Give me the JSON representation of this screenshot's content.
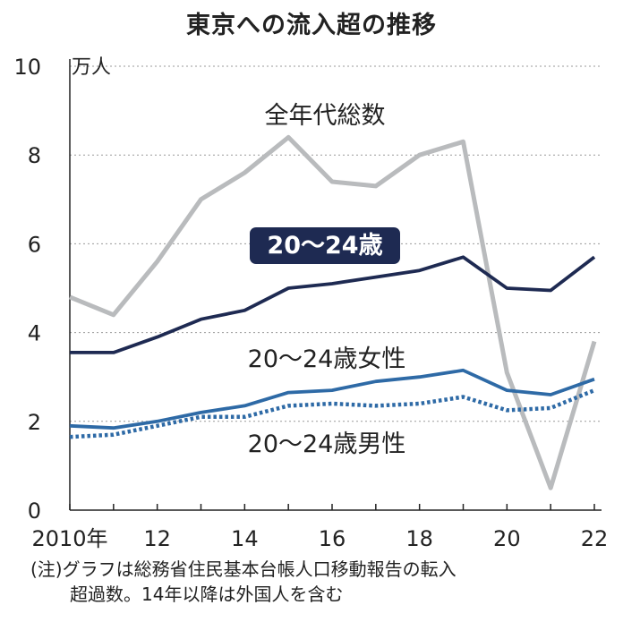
{
  "title": "東京への流入超の推移",
  "note": {
    "line1": "(注)グラフは総務省住民基本台帳人口移動報告の転入",
    "line2": "超過数。14年以降は外国人を含む"
  },
  "chart_data": {
    "type": "line",
    "unit": "万人",
    "x": [
      2010,
      2011,
      2012,
      2013,
      2014,
      2015,
      2016,
      2017,
      2018,
      2019,
      2020,
      2021,
      2022
    ],
    "x_tick_labels": [
      {
        "x": 2010,
        "label": "2010年"
      },
      {
        "x": 2012,
        "label": "12"
      },
      {
        "x": 2014,
        "label": "14"
      },
      {
        "x": 2016,
        "label": "16"
      },
      {
        "x": 2018,
        "label": "18"
      },
      {
        "x": 2020,
        "label": "20"
      },
      {
        "x": 2022,
        "label": "22"
      }
    ],
    "ylim": [
      0,
      10
    ],
    "y_ticks": [
      0,
      2,
      4,
      6,
      8,
      10
    ],
    "grid": true,
    "series": [
      {
        "name": "全年代総数",
        "color": "#b9bbbd",
        "style": "solid",
        "values": [
          4.8,
          4.4,
          5.6,
          7.0,
          7.6,
          8.4,
          7.4,
          7.3,
          8.0,
          8.3,
          3.1,
          0.5,
          3.8
        ]
      },
      {
        "name": "20～24歳",
        "color": "#1e2a52",
        "style": "solid",
        "label_boxed": true,
        "values": [
          3.55,
          3.55,
          3.9,
          4.3,
          4.5,
          5.0,
          5.1,
          5.25,
          5.4,
          5.7,
          5.0,
          4.95,
          5.7
        ]
      },
      {
        "name": "20～24歳女性",
        "color": "#2e6aa6",
        "style": "solid",
        "values": [
          1.9,
          1.85,
          2.0,
          2.2,
          2.35,
          2.65,
          2.7,
          2.9,
          3.0,
          3.15,
          2.7,
          2.6,
          2.95
        ]
      },
      {
        "name": "20～24歳男性",
        "color": "#2e6aa6",
        "style": "dotted",
        "values": [
          1.65,
          1.7,
          1.9,
          2.1,
          2.1,
          2.35,
          2.4,
          2.35,
          2.4,
          2.55,
          2.25,
          2.3,
          2.7
        ]
      }
    ]
  }
}
